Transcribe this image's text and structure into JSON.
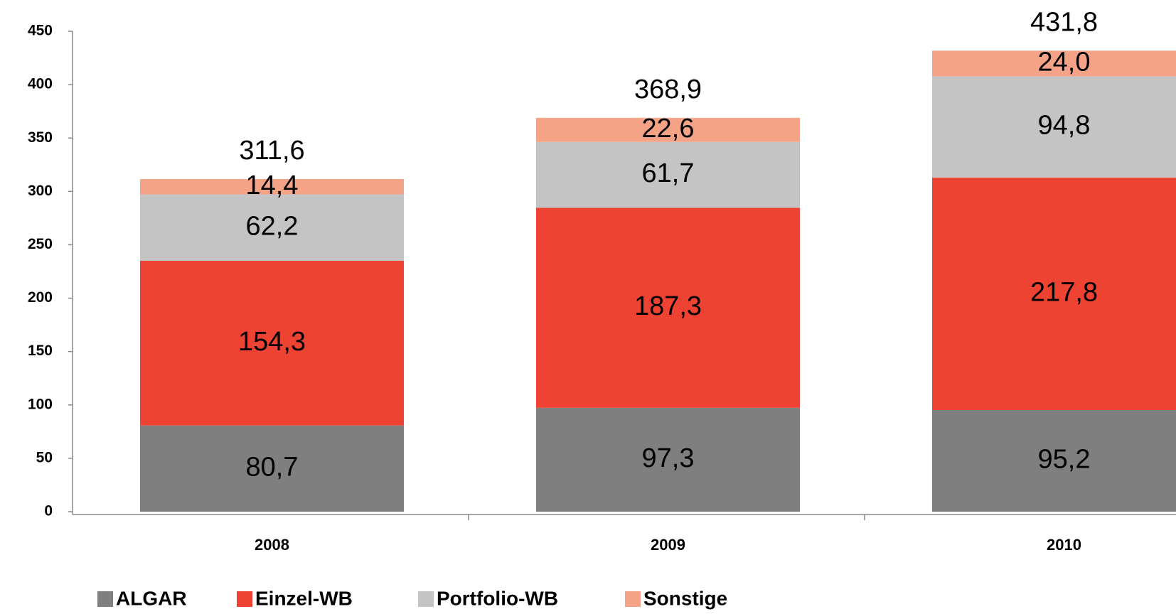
{
  "chart_data": {
    "type": "stacked_bar",
    "categories": [
      "2008",
      "2009",
      "2010"
    ],
    "series": [
      {
        "name": "ALGAR",
        "color": "#7f7f7f",
        "values": [
          80.7,
          97.3,
          95.2
        ],
        "value_labels": [
          "80,7",
          "97,3",
          "95,2"
        ]
      },
      {
        "name": "Einzel-WB",
        "color": "#ee4232",
        "values": [
          154.3,
          187.3,
          217.8
        ],
        "value_labels": [
          "154,3",
          "187,3",
          "217,8"
        ]
      },
      {
        "name": "Portfolio-WB",
        "color": "#c4c4c4",
        "values": [
          62.2,
          61.7,
          94.8
        ],
        "value_labels": [
          "62,2",
          "61,7",
          "94,8"
        ]
      },
      {
        "name": "Sonstige",
        "color": "#f5a387",
        "values": [
          14.4,
          22.6,
          24.0
        ],
        "value_labels": [
          "14,4",
          "22,6",
          "24,0"
        ]
      }
    ],
    "totals": [
      311.6,
      368.9,
      431.8
    ],
    "total_labels": [
      "311,6",
      "368,9",
      "431,8"
    ],
    "ylim": [
      0,
      450
    ],
    "yticks": [
      0,
      50,
      100,
      150,
      200,
      250,
      300,
      350,
      400,
      450
    ],
    "legend": "bottom"
  }
}
